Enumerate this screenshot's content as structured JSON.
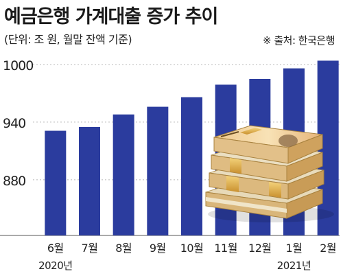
{
  "title": "예금은행 가계대출 증가 추이",
  "subtitle": "(단위: 조 원, 월말 잔액 기준)",
  "source": "※ 출처: 한국은행",
  "colors": {
    "bar": "#2b3c9e",
    "grid": "#b8b8b8",
    "axis": "#555555"
  },
  "illustration": "stacked-won-banknotes",
  "chart_data": {
    "type": "bar",
    "categories": [
      "6월",
      "7월",
      "8월",
      "9월",
      "10월",
      "11월",
      "12월",
      "1월",
      "2월"
    ],
    "year_labels": [
      "2020년",
      "",
      "",
      "",
      "",
      "",
      "",
      "2021년",
      ""
    ],
    "values": [
      931,
      935,
      948,
      956,
      966,
      979,
      985,
      996,
      1004
    ],
    "yticks": [
      880,
      940,
      1000
    ],
    "ylim": [
      822,
      1010
    ],
    "grid": true
  }
}
